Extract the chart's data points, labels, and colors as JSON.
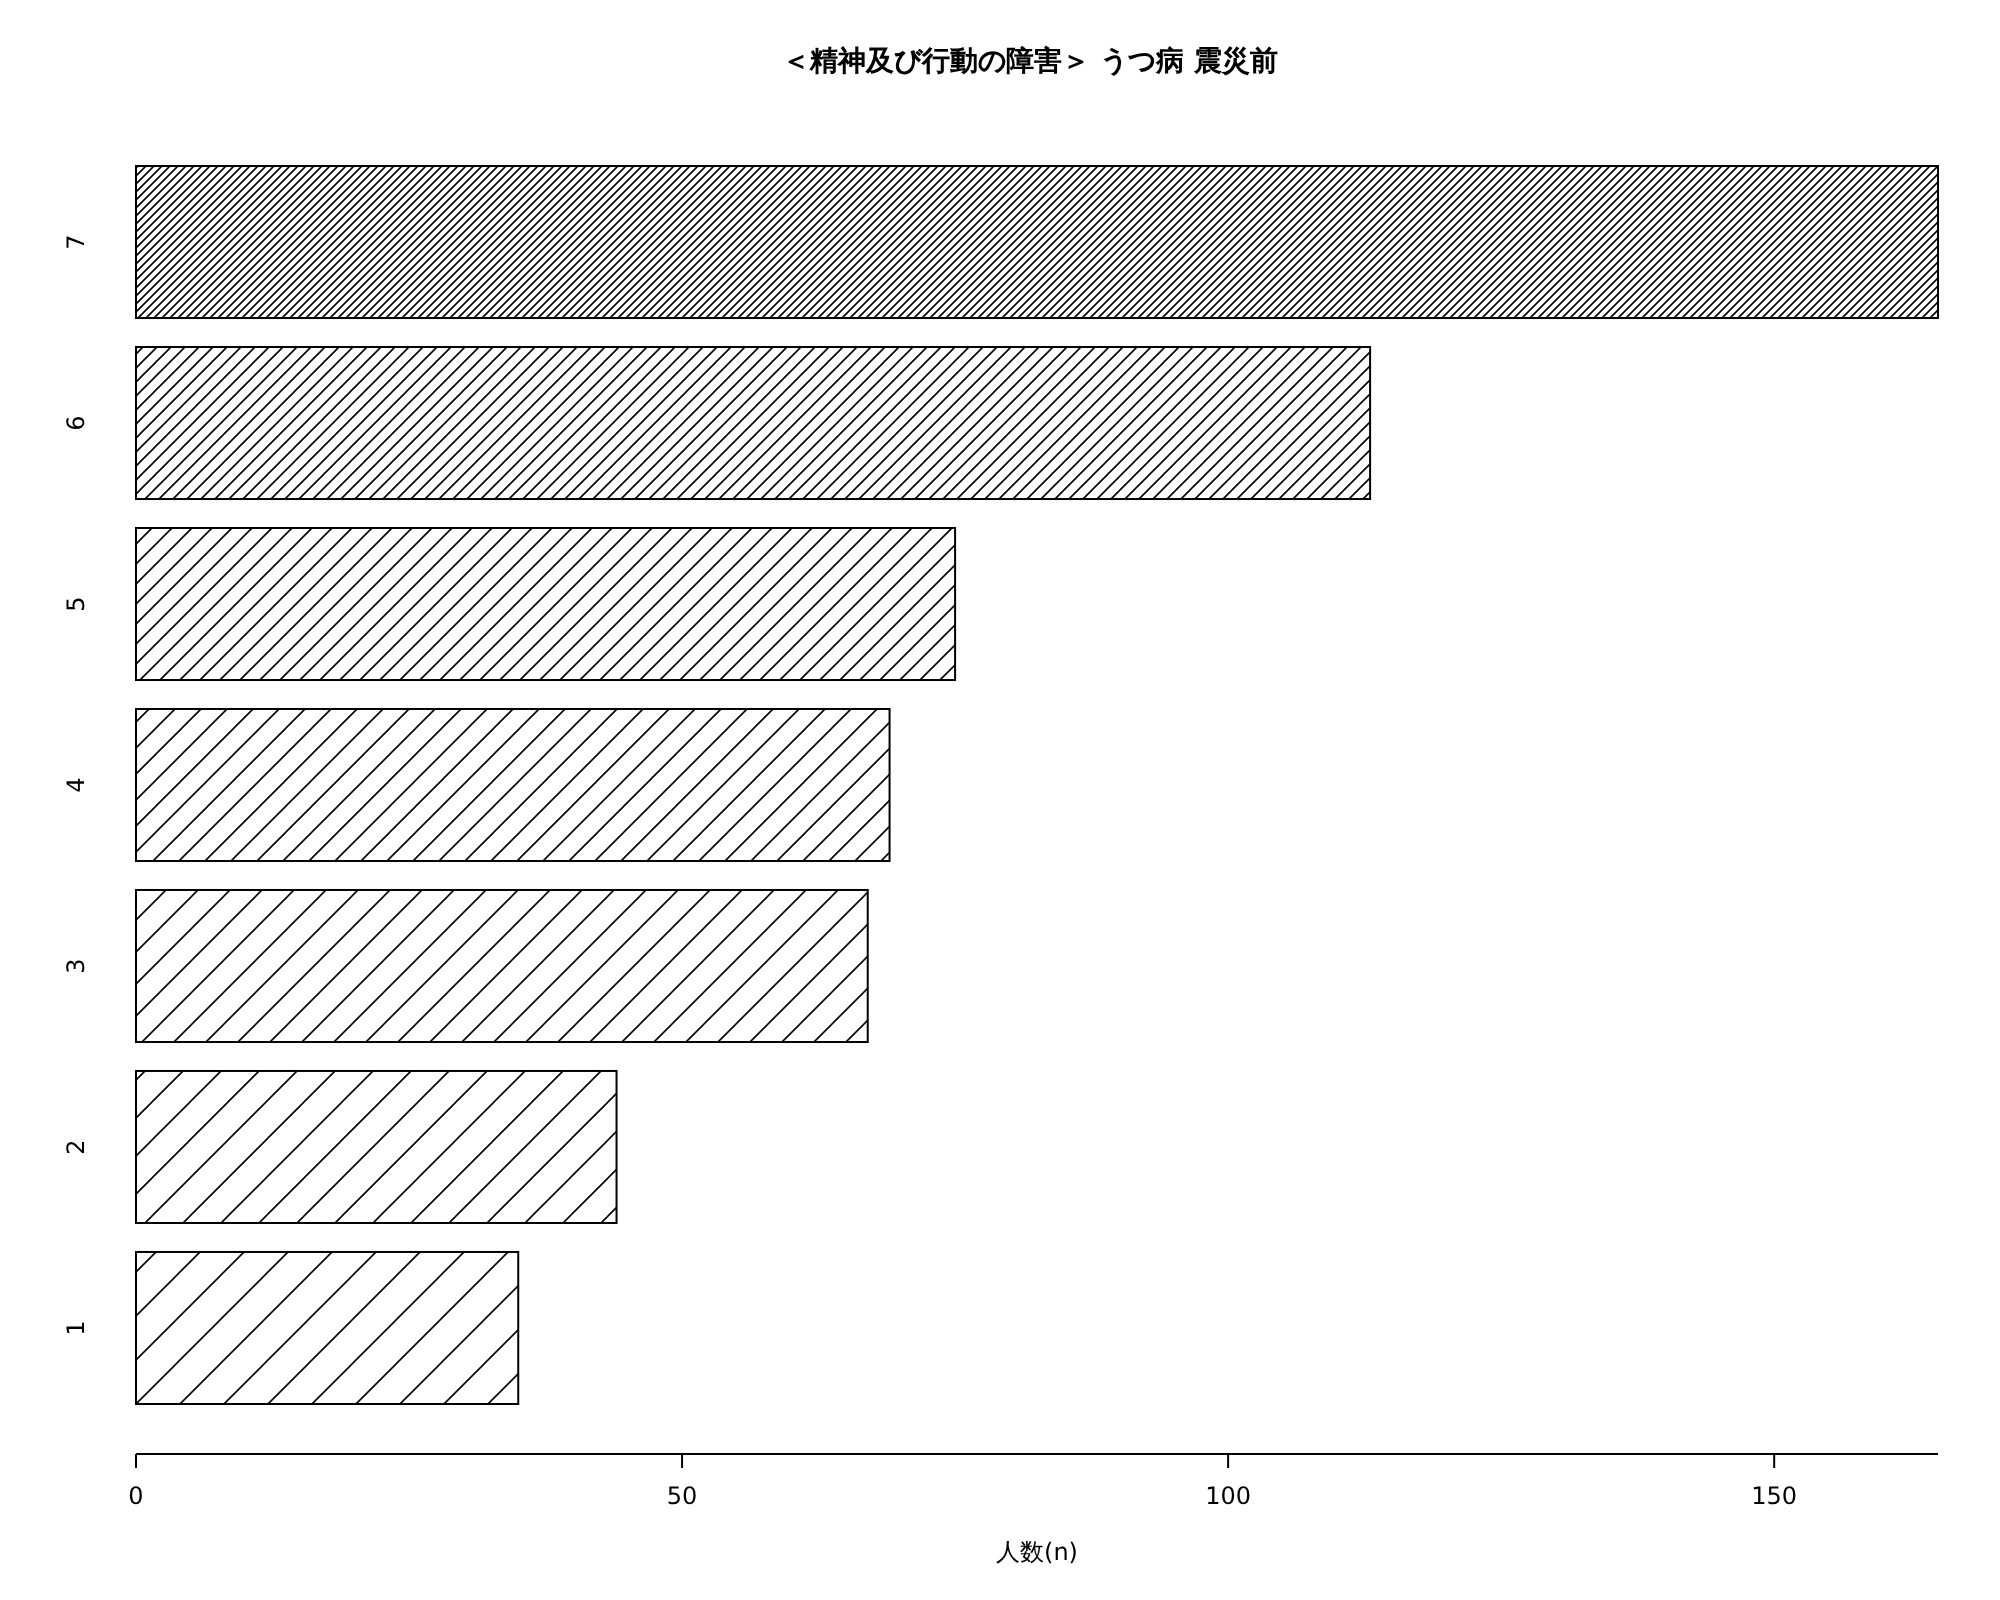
{
  "chart_data": {
    "type": "bar",
    "orientation": "horizontal",
    "title": "＜精神及び行動の障害＞ うつ病 震災前",
    "xlabel": "人数(n)",
    "categories": [
      "7",
      "6",
      "5",
      "4",
      "3",
      "2",
      "1"
    ],
    "values": [
      165,
      113,
      75,
      69,
      67,
      44,
      35
    ],
    "color": "#000000",
    "xlim": [
      0,
      165
    ],
    "xticks": [
      0,
      50,
      100,
      150
    ],
    "grid": false
  }
}
